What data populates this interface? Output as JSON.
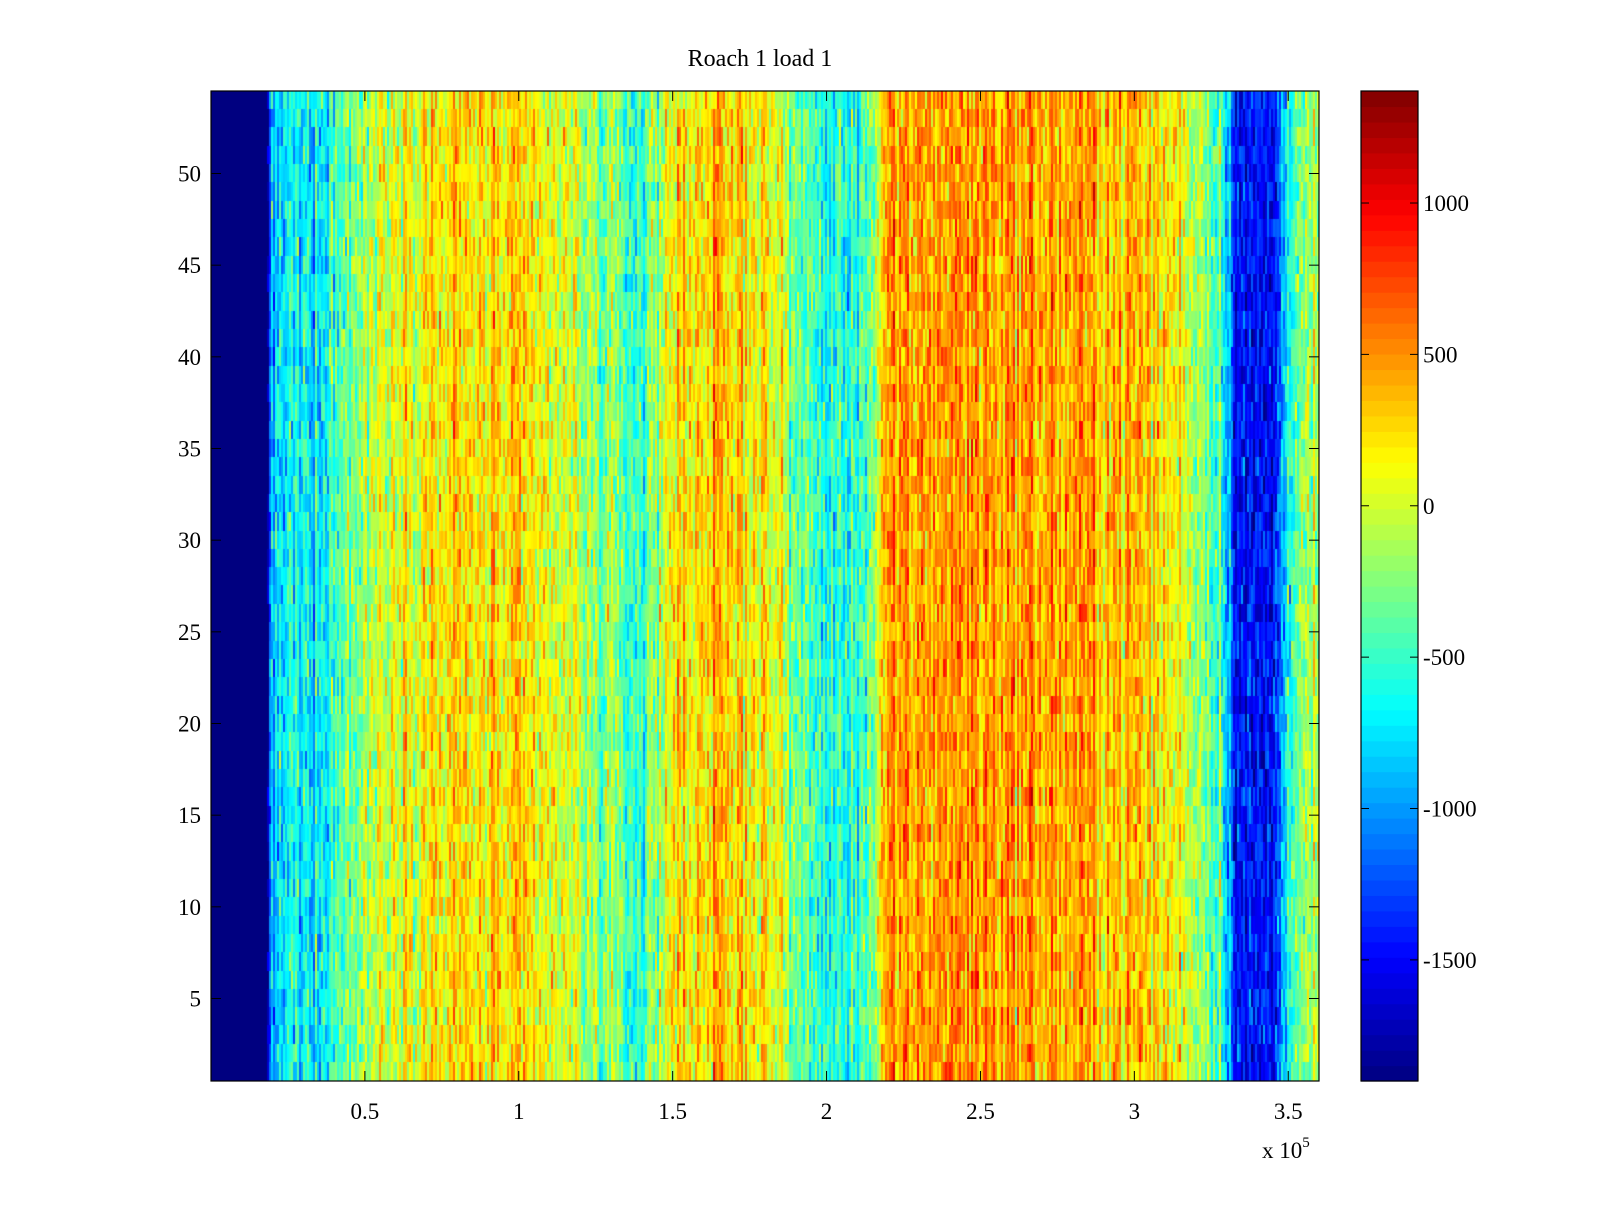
{
  "chart_data": {
    "type": "heatmap",
    "title": "Roach 1 load 1",
    "xlabel": "",
    "ylabel": "",
    "x_exponent": {
      "base_text": "x 10",
      "power_text": "5"
    },
    "xlim": [
      0,
      360000
    ],
    "ylim": [
      0.5,
      54.5
    ],
    "rows": 54,
    "x_ticks": [
      {
        "value": 50000,
        "label": "0.5"
      },
      {
        "value": 100000,
        "label": "1"
      },
      {
        "value": 150000,
        "label": "1.5"
      },
      {
        "value": 200000,
        "label": "2"
      },
      {
        "value": 250000,
        "label": "2.5"
      },
      {
        "value": 300000,
        "label": "3"
      },
      {
        "value": 350000,
        "label": "3.5"
      }
    ],
    "y_ticks": [
      {
        "value": 5,
        "label": "5"
      },
      {
        "value": 10,
        "label": "10"
      },
      {
        "value": 15,
        "label": "15"
      },
      {
        "value": 20,
        "label": "20"
      },
      {
        "value": 25,
        "label": "25"
      },
      {
        "value": 30,
        "label": "30"
      },
      {
        "value": 35,
        "label": "35"
      },
      {
        "value": 40,
        "label": "40"
      },
      {
        "value": 45,
        "label": "45"
      },
      {
        "value": 50,
        "label": "50"
      }
    ],
    "colorbar": {
      "colormap": "jet",
      "clim": [
        -1900,
        1370
      ],
      "ticks": [
        {
          "value": 1000,
          "label": "1000"
        },
        {
          "value": 500,
          "label": "500"
        },
        {
          "value": 0,
          "label": "0"
        },
        {
          "value": -500,
          "label": "-500"
        },
        {
          "value": -1000,
          "label": "-1000"
        },
        {
          "value": -1500,
          "label": "-1500"
        }
      ]
    },
    "column_profile": {
      "x": [
        0,
        18000,
        20000,
        25000,
        35000,
        45000,
        60000,
        75000,
        95000,
        115000,
        130000,
        140000,
        150000,
        160000,
        180000,
        195000,
        205000,
        215000,
        220000,
        240000,
        265000,
        285000,
        300000,
        315000,
        328000,
        333000,
        336000,
        345000,
        348000,
        351000,
        360000
      ],
      "mean_value": [
        -1900,
        -1900,
        -900,
        -700,
        -650,
        -300,
        150,
        200,
        200,
        0,
        -300,
        -500,
        200,
        300,
        200,
        -500,
        -600,
        -300,
        400,
        500,
        450,
        400,
        350,
        100,
        -400,
        -1300,
        -1500,
        -1500,
        -1000,
        -300,
        -150
      ]
    },
    "noise_amplitude": 260,
    "banding": "vertical bands with strong random column-to-column variation"
  }
}
